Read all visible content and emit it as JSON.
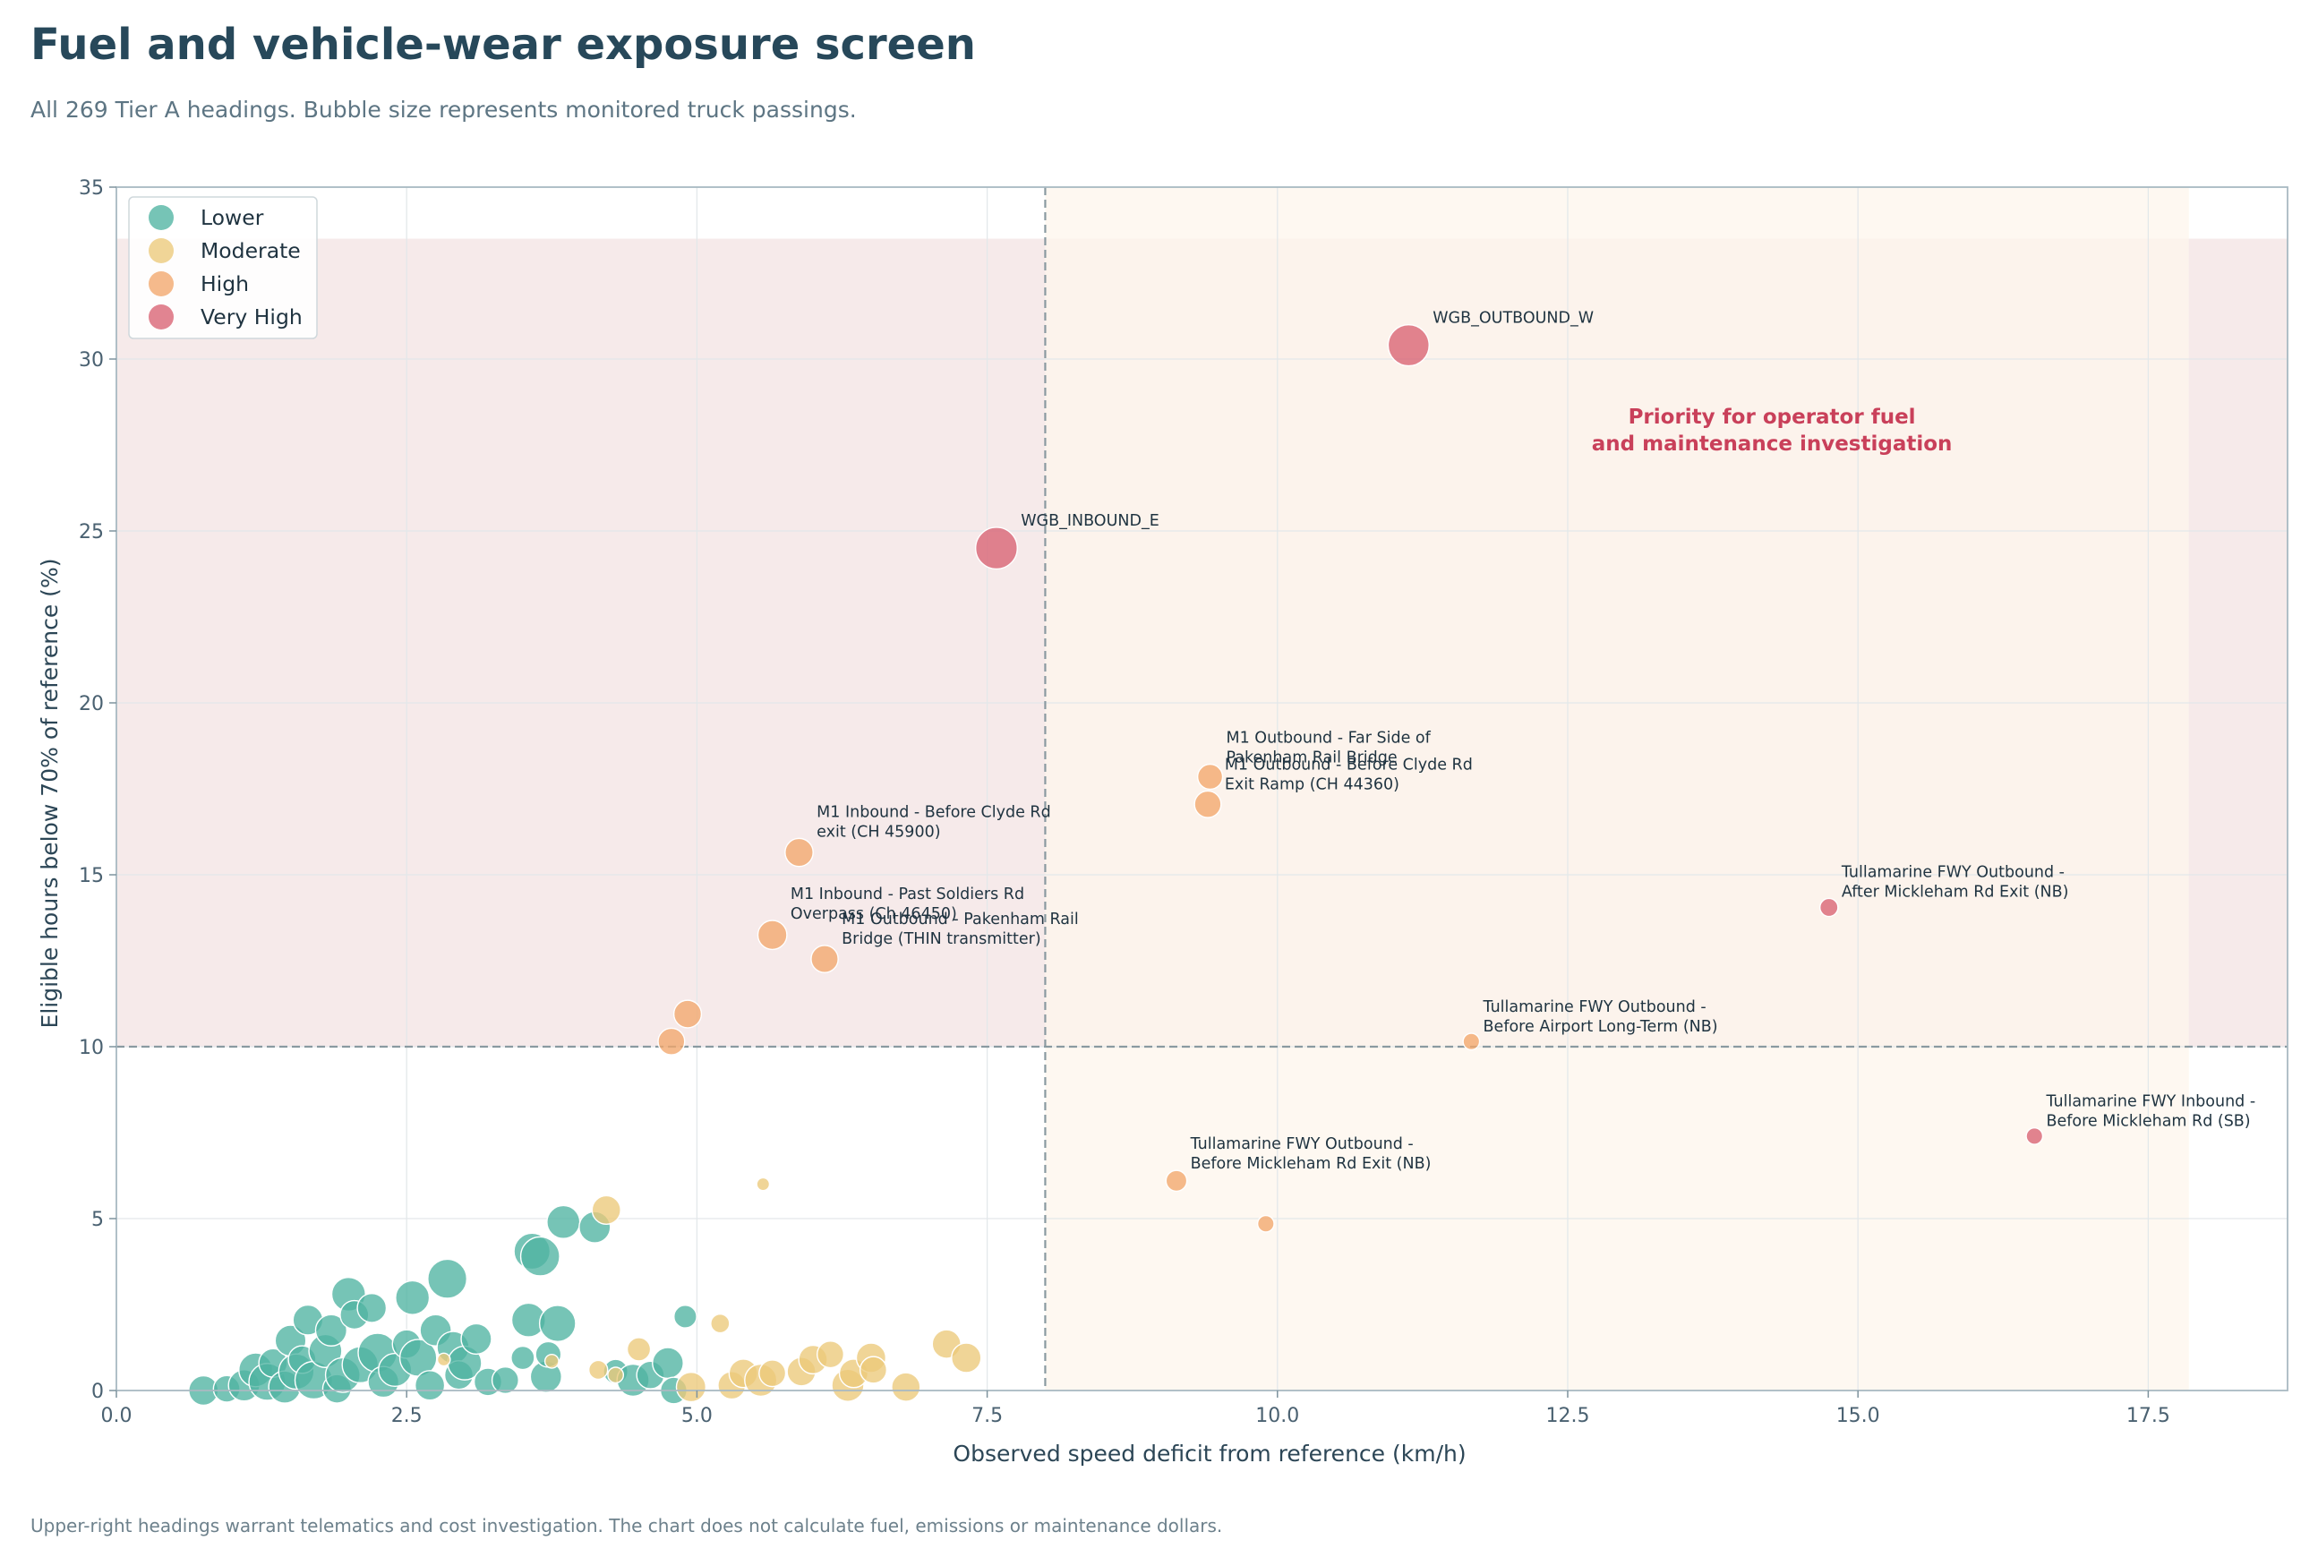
{
  "header": {
    "title": "Fuel and vehicle-wear exposure screen",
    "subtitle": "All 269 Tier A headings. Bubble size represents monitored truck passings."
  },
  "footer": {
    "note": "Upper-right headings warrant telematics and cost investigation. The chart does not calculate fuel, emissions or maintenance dollars."
  },
  "chart_data": {
    "type": "scatter",
    "xlabel": "Observed speed deficit from reference (km/h)",
    "ylabel": "Eligible hours below 70% of reference (%)",
    "xlim": [
      0,
      18.7
    ],
    "ylim": [
      0,
      35
    ],
    "x_ticks": [
      "0.0",
      "2.5",
      "5.0",
      "7.5",
      "10.0",
      "12.5",
      "15.0",
      "17.5"
    ],
    "y_ticks": [
      "0",
      "5",
      "10",
      "15",
      "20",
      "25",
      "30",
      "35"
    ],
    "x_tick_values": [
      0,
      2.5,
      5,
      7.5,
      10,
      12.5,
      15,
      17.5
    ],
    "y_tick_values": [
      0,
      5,
      10,
      15,
      20,
      25,
      30,
      35
    ],
    "grid": true,
    "legend_position": "top-left",
    "thresholds": {
      "x": 8,
      "y": 10
    },
    "priority_region": {
      "x_min": 8,
      "x_max": 17.85,
      "y_min": 10,
      "y_max": 33.5
    },
    "annotation": [
      "Priority for operator fuel",
      "and maintenance investigation"
    ],
    "colors": {
      "Lower": "#4fb3a2",
      "Moderate": "#ecc97a",
      "High": "#f2a66c",
      "Very High": "#d86272",
      "threshold_line": "#8a9aa1",
      "band_red": "#f6eaea",
      "band_orange": "#fdf5ec",
      "annotation": "#c9405a",
      "point_edge": "#ffffff"
    },
    "series": [
      {
        "name": "Lower",
        "points": [
          {
            "x": 0.75,
            "y": 0.0,
            "size": 320
          },
          {
            "x": 0.95,
            "y": 0.05,
            "size": 260
          },
          {
            "x": 1.1,
            "y": 0.15,
            "size": 360
          },
          {
            "x": 1.2,
            "y": 0.6,
            "size": 420
          },
          {
            "x": 1.3,
            "y": 0.25,
            "size": 500
          },
          {
            "x": 1.35,
            "y": 0.8,
            "size": 300
          },
          {
            "x": 1.45,
            "y": 0.1,
            "size": 380
          },
          {
            "x": 1.5,
            "y": 1.45,
            "size": 350
          },
          {
            "x": 1.55,
            "y": 0.55,
            "size": 460
          },
          {
            "x": 1.6,
            "y": 0.9,
            "size": 280
          },
          {
            "x": 1.65,
            "y": 2.05,
            "size": 330
          },
          {
            "x": 1.7,
            "y": 0.3,
            "size": 520
          },
          {
            "x": 1.8,
            "y": 1.15,
            "size": 400
          },
          {
            "x": 1.85,
            "y": 1.75,
            "size": 360
          },
          {
            "x": 1.9,
            "y": 0.05,
            "size": 300
          },
          {
            "x": 1.95,
            "y": 0.45,
            "size": 440
          },
          {
            "x": 2.0,
            "y": 2.8,
            "size": 420
          },
          {
            "x": 2.05,
            "y": 2.2,
            "size": 300
          },
          {
            "x": 2.1,
            "y": 0.75,
            "size": 480
          },
          {
            "x": 2.2,
            "y": 2.4,
            "size": 310
          },
          {
            "x": 2.25,
            "y": 1.1,
            "size": 560
          },
          {
            "x": 2.3,
            "y": 0.25,
            "size": 350
          },
          {
            "x": 2.4,
            "y": 0.6,
            "size": 400
          },
          {
            "x": 2.5,
            "y": 1.35,
            "size": 300
          },
          {
            "x": 2.55,
            "y": 2.7,
            "size": 420
          },
          {
            "x": 2.6,
            "y": 0.95,
            "size": 500
          },
          {
            "x": 2.7,
            "y": 0.15,
            "size": 320
          },
          {
            "x": 2.75,
            "y": 1.75,
            "size": 360
          },
          {
            "x": 2.85,
            "y": 3.25,
            "size": 560
          },
          {
            "x": 2.9,
            "y": 1.25,
            "size": 380
          },
          {
            "x": 2.95,
            "y": 0.45,
            "size": 300
          },
          {
            "x": 3.0,
            "y": 0.8,
            "size": 420
          },
          {
            "x": 3.1,
            "y": 1.5,
            "size": 340
          },
          {
            "x": 3.2,
            "y": 0.25,
            "size": 280
          },
          {
            "x": 3.35,
            "y": 0.3,
            "size": 260
          },
          {
            "x": 3.5,
            "y": 0.95,
            "size": 200
          },
          {
            "x": 3.55,
            "y": 2.05,
            "size": 420
          },
          {
            "x": 3.58,
            "y": 4.05,
            "size": 480
          },
          {
            "x": 3.65,
            "y": 3.9,
            "size": 560
          },
          {
            "x": 3.7,
            "y": 0.4,
            "size": 360
          },
          {
            "x": 3.72,
            "y": 1.05,
            "size": 240
          },
          {
            "x": 3.8,
            "y": 1.95,
            "size": 480
          },
          {
            "x": 3.85,
            "y": 4.9,
            "size": 400
          },
          {
            "x": 4.12,
            "y": 4.75,
            "size": 360
          },
          {
            "x": 4.3,
            "y": 0.55,
            "size": 220
          },
          {
            "x": 4.45,
            "y": 0.3,
            "size": 380
          },
          {
            "x": 4.6,
            "y": 0.45,
            "size": 280
          },
          {
            "x": 4.75,
            "y": 0.8,
            "size": 350
          },
          {
            "x": 4.8,
            "y": 0.0,
            "size": 260
          },
          {
            "x": 4.9,
            "y": 2.15,
            "size": 190
          }
        ]
      },
      {
        "name": "Moderate",
        "points": [
          {
            "x": 2.82,
            "y": 0.9,
            "size": 60
          },
          {
            "x": 3.75,
            "y": 0.85,
            "size": 70
          },
          {
            "x": 4.15,
            "y": 0.6,
            "size": 130
          },
          {
            "x": 4.22,
            "y": 5.25,
            "size": 300
          },
          {
            "x": 4.3,
            "y": 0.45,
            "size": 90
          },
          {
            "x": 4.5,
            "y": 1.2,
            "size": 200
          },
          {
            "x": 4.95,
            "y": 0.1,
            "size": 320
          },
          {
            "x": 5.2,
            "y": 1.95,
            "size": 130
          },
          {
            "x": 5.3,
            "y": 0.15,
            "size": 280
          },
          {
            "x": 5.4,
            "y": 0.5,
            "size": 300
          },
          {
            "x": 5.55,
            "y": 0.3,
            "size": 380
          },
          {
            "x": 5.57,
            "y": 6.0,
            "size": 60
          },
          {
            "x": 5.65,
            "y": 0.5,
            "size": 260
          },
          {
            "x": 5.9,
            "y": 0.55,
            "size": 300
          },
          {
            "x": 6.0,
            "y": 0.9,
            "size": 300
          },
          {
            "x": 6.15,
            "y": 1.05,
            "size": 260
          },
          {
            "x": 6.3,
            "y": 0.15,
            "size": 380
          },
          {
            "x": 6.35,
            "y": 0.5,
            "size": 300
          },
          {
            "x": 6.5,
            "y": 0.95,
            "size": 320
          },
          {
            "x": 6.52,
            "y": 0.6,
            "size": 260
          },
          {
            "x": 6.8,
            "y": 0.1,
            "size": 300
          },
          {
            "x": 7.15,
            "y": 1.35,
            "size": 300
          },
          {
            "x": 7.32,
            "y": 0.95,
            "size": 320
          }
        ]
      },
      {
        "name": "High",
        "points": [
          {
            "x": 9.42,
            "y": 17.85,
            "size": 230,
            "label": "M1 Outbound - Far Side of\nPakenham Rail Bridge"
          },
          {
            "x": 9.4,
            "y": 17.05,
            "size": 260,
            "label": "M1 Outbound - Before Clyde Rd\nExit Ramp (CH 44360)"
          },
          {
            "x": 5.88,
            "y": 15.65,
            "size": 290,
            "label": "M1 Inbound - Before Clyde Rd\nexit (CH 45900)"
          },
          {
            "x": 5.65,
            "y": 13.25,
            "size": 310,
            "label": "M1 Inbound - Past Soldiers Rd\nOverpass (Ch 46450)"
          },
          {
            "x": 6.1,
            "y": 12.55,
            "size": 270,
            "label": "M1 Outbound - Pakenham Rail\nBridge (THIN transmitter)"
          },
          {
            "x": 4.92,
            "y": 10.95,
            "size": 280
          },
          {
            "x": 4.78,
            "y": 10.15,
            "size": 260
          },
          {
            "x": 11.67,
            "y": 10.15,
            "size": 100,
            "label": "Tullamarine FWY Outbound -\nBefore Airport Long-Term (NB)"
          },
          {
            "x": 9.13,
            "y": 6.1,
            "size": 160,
            "label": "Tullamarine FWY Outbound -\nBefore Mickleham Rd Exit (NB)"
          },
          {
            "x": 9.9,
            "y": 4.85,
            "size": 100
          }
        ]
      },
      {
        "name": "Very High",
        "points": [
          {
            "x": 11.13,
            "y": 30.4,
            "size": 620,
            "label": "WGB_OUTBOUND_W"
          },
          {
            "x": 7.58,
            "y": 24.5,
            "size": 640,
            "label": "WGB_INBOUND_E"
          },
          {
            "x": 14.75,
            "y": 14.05,
            "size": 120,
            "label": "Tullamarine FWY Outbound -\nAfter Mickleham Rd Exit (NB)"
          },
          {
            "x": 16.52,
            "y": 7.4,
            "size": 100,
            "label": "Tullamarine FWY Inbound -\nBefore Mickleham Rd (SB)"
          }
        ]
      }
    ]
  }
}
